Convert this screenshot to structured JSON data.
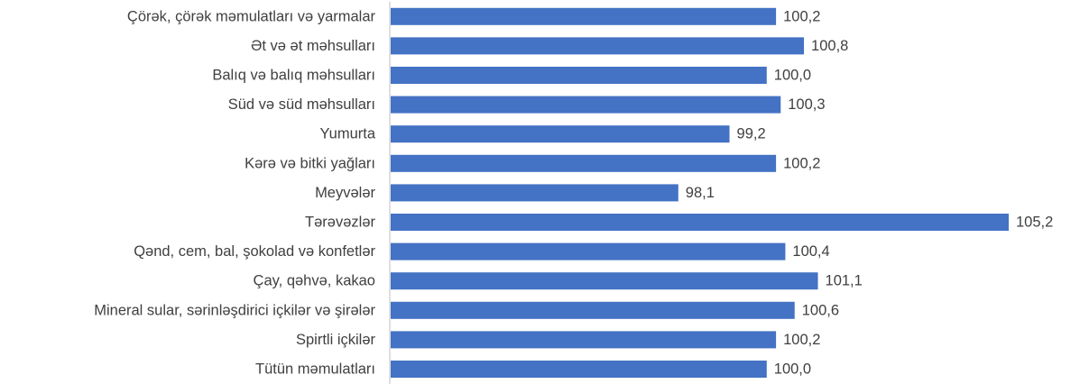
{
  "chart_data": {
    "type": "bar",
    "orientation": "horizontal",
    "categories": [
      "Çörək, çörək məmulatları və yarmalar",
      "Ət və ət məhsulları",
      "Balıq və balıq məhsulları",
      "Süd və süd məhsulları",
      "Yumurta",
      "Kərə və bitki yağları",
      "Meyvələr",
      "Tərəvəzlər",
      "Qənd, cem, bal, şokolad və konfetlər",
      "Çay, qəhvə, kakao",
      "Mineral sular, sərinləşdirici içkilər və şirələr",
      "Spirtli içkilər",
      "Tütün məmulatları"
    ],
    "values": [
      100.2,
      100.8,
      100.0,
      100.3,
      99.2,
      100.2,
      98.1,
      105.2,
      100.4,
      101.1,
      100.6,
      100.2,
      100.0
    ],
    "value_labels": [
      "100,2",
      "100,8",
      "100,0",
      "100,3",
      "99,2",
      "100,2",
      "98,1",
      "105,2",
      "100,4",
      "101,1",
      "100,6",
      "100,2",
      "100,0"
    ],
    "xlim": [
      91.9,
      105.2
    ],
    "colors": {
      "bar": "#4472C4",
      "axis": "#BFBFBF",
      "text": "#404040"
    },
    "data_labels": true,
    "legend": false,
    "grid": false
  }
}
